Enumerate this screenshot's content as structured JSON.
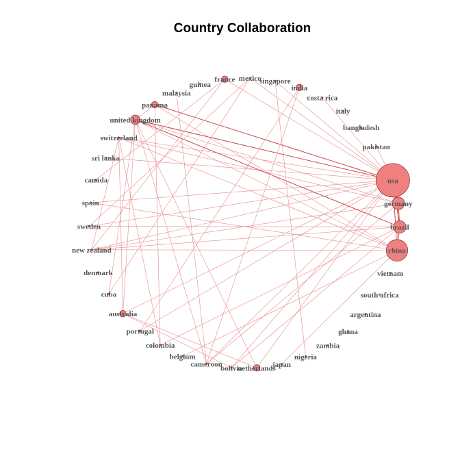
{
  "title": "Country Collaboration",
  "colors": {
    "node_fill": "#f08080",
    "node_stroke": "#8b3a3a",
    "edge": "#e8888a",
    "edge_strong": "#c8474b",
    "label": "#555555"
  },
  "nodes": [
    {
      "id": "usa",
      "label": "usa",
      "weight": 10
    },
    {
      "id": "germany",
      "label": "germany",
      "weight": 3
    },
    {
      "id": "brazil",
      "label": "brazil",
      "weight": 3
    },
    {
      "id": "china",
      "label": "china",
      "weight": 6
    },
    {
      "id": "vietnam",
      "label": "vietnam",
      "weight": 0
    },
    {
      "id": "south-africa",
      "label": "south africa",
      "weight": 0
    },
    {
      "id": "argentina",
      "label": "argentina",
      "weight": 0
    },
    {
      "id": "ghana",
      "label": "ghana",
      "weight": 0
    },
    {
      "id": "zambia",
      "label": "zambia",
      "weight": 0
    },
    {
      "id": "nigeria",
      "label": "nigeria",
      "weight": 0
    },
    {
      "id": "japan",
      "label": "japan",
      "weight": 0
    },
    {
      "id": "netherlands",
      "label": "netherlands",
      "weight": 1
    },
    {
      "id": "bolivia",
      "label": "bolivia",
      "weight": 0
    },
    {
      "id": "cameroon",
      "label": "cameroon",
      "weight": 0
    },
    {
      "id": "belgium",
      "label": "belgium",
      "weight": 0
    },
    {
      "id": "colombia",
      "label": "colombia",
      "weight": 0
    },
    {
      "id": "portugal",
      "label": "portugal",
      "weight": 0
    },
    {
      "id": "australia",
      "label": "australia",
      "weight": 1
    },
    {
      "id": "cuba",
      "label": "cuba",
      "weight": 0
    },
    {
      "id": "denmark",
      "label": "denmark",
      "weight": 0
    },
    {
      "id": "new-zealand",
      "label": "new zealand",
      "weight": 0
    },
    {
      "id": "sweden",
      "label": "sweden",
      "weight": 0
    },
    {
      "id": "spain",
      "label": "spain",
      "weight": 0
    },
    {
      "id": "canada",
      "label": "canada",
      "weight": 0
    },
    {
      "id": "sri-lanka",
      "label": "sri lanka",
      "weight": 0
    },
    {
      "id": "switzerland",
      "label": "switzerland",
      "weight": 0
    },
    {
      "id": "united-kingdom",
      "label": "united kingdom",
      "weight": 2
    },
    {
      "id": "panama",
      "label": "panama",
      "weight": 1
    },
    {
      "id": "malaysia",
      "label": "malaysia",
      "weight": 0
    },
    {
      "id": "guinea",
      "label": "guinea",
      "weight": 0
    },
    {
      "id": "france",
      "label": "france",
      "weight": 1
    },
    {
      "id": "mexico",
      "label": "mexico",
      "weight": 0
    },
    {
      "id": "singapore",
      "label": "singapore",
      "weight": 0
    },
    {
      "id": "india",
      "label": "india",
      "weight": 1
    },
    {
      "id": "costa-rica",
      "label": "costa rica",
      "weight": 0
    },
    {
      "id": "italy",
      "label": "italy",
      "weight": 0
    },
    {
      "id": "bangladesh",
      "label": "bangladesh",
      "weight": 0
    },
    {
      "id": "pakistan",
      "label": "pakistan",
      "weight": 0
    }
  ],
  "edges": [
    [
      "usa",
      "germany",
      3
    ],
    [
      "usa",
      "brazil",
      3
    ],
    [
      "usa",
      "china",
      3
    ],
    [
      "germany",
      "brazil",
      2
    ],
    [
      "brazil",
      "china",
      2
    ],
    [
      "germany",
      "china",
      1
    ],
    [
      "usa",
      "united-kingdom",
      2
    ],
    [
      "usa",
      "switzerland",
      1
    ],
    [
      "usa",
      "panama",
      2
    ],
    [
      "usa",
      "new-zealand",
      1
    ],
    [
      "usa",
      "sri-lanka",
      1
    ],
    [
      "usa",
      "spain",
      1
    ],
    [
      "usa",
      "france",
      1
    ],
    [
      "usa",
      "mexico",
      1
    ],
    [
      "usa",
      "singapore",
      1
    ],
    [
      "usa",
      "costa-rica",
      1
    ],
    [
      "usa",
      "cameroon",
      1
    ],
    [
      "usa",
      "bolivia",
      1
    ],
    [
      "usa",
      "netherlands",
      1
    ],
    [
      "usa",
      "portugal",
      1
    ],
    [
      "usa",
      "australia",
      1
    ],
    [
      "usa",
      "sweden",
      1
    ],
    [
      "usa",
      "pakistan",
      1
    ],
    [
      "germany",
      "new-zealand",
      1
    ],
    [
      "germany",
      "cameroon",
      1
    ],
    [
      "germany",
      "switzerland",
      1
    ],
    [
      "germany",
      "united-kingdom",
      1
    ],
    [
      "brazil",
      "united-kingdom",
      2
    ],
    [
      "brazil",
      "new-zealand",
      1
    ],
    [
      "brazil",
      "colombia",
      1
    ],
    [
      "brazil",
      "bolivia",
      1
    ],
    [
      "brazil",
      "sweden",
      1
    ],
    [
      "china",
      "united-kingdom",
      1
    ],
    [
      "china",
      "switzerland",
      1
    ],
    [
      "china",
      "spain",
      1
    ],
    [
      "china",
      "new-zealand",
      1
    ],
    [
      "china",
      "belgium",
      1
    ],
    [
      "china",
      "japan",
      1
    ],
    [
      "china",
      "panama",
      1
    ],
    [
      "united-kingdom",
      "panama",
      1
    ],
    [
      "united-kingdom",
      "cuba",
      1
    ],
    [
      "united-kingdom",
      "cameroon",
      1
    ],
    [
      "united-kingdom",
      "netherlands",
      1
    ],
    [
      "united-kingdom",
      "australia",
      1
    ],
    [
      "switzerland",
      "australia",
      1
    ],
    [
      "switzerland",
      "colombia",
      1
    ],
    [
      "switzerland",
      "new-zealand",
      1
    ],
    [
      "france",
      "new-zealand",
      1
    ],
    [
      "france",
      "canada",
      1
    ],
    [
      "mexico",
      "sweden",
      1
    ],
    [
      "mexico",
      "cuba",
      1
    ],
    [
      "india",
      "cameroon",
      1
    ],
    [
      "india",
      "portugal",
      1
    ],
    [
      "malaysia",
      "cameroon",
      1
    ],
    [
      "australia",
      "netherlands",
      1
    ],
    [
      "australia",
      "bolivia",
      1
    ],
    [
      "panama",
      "colombia",
      1
    ],
    [
      "singapore",
      "nigeria",
      1
    ]
  ]
}
